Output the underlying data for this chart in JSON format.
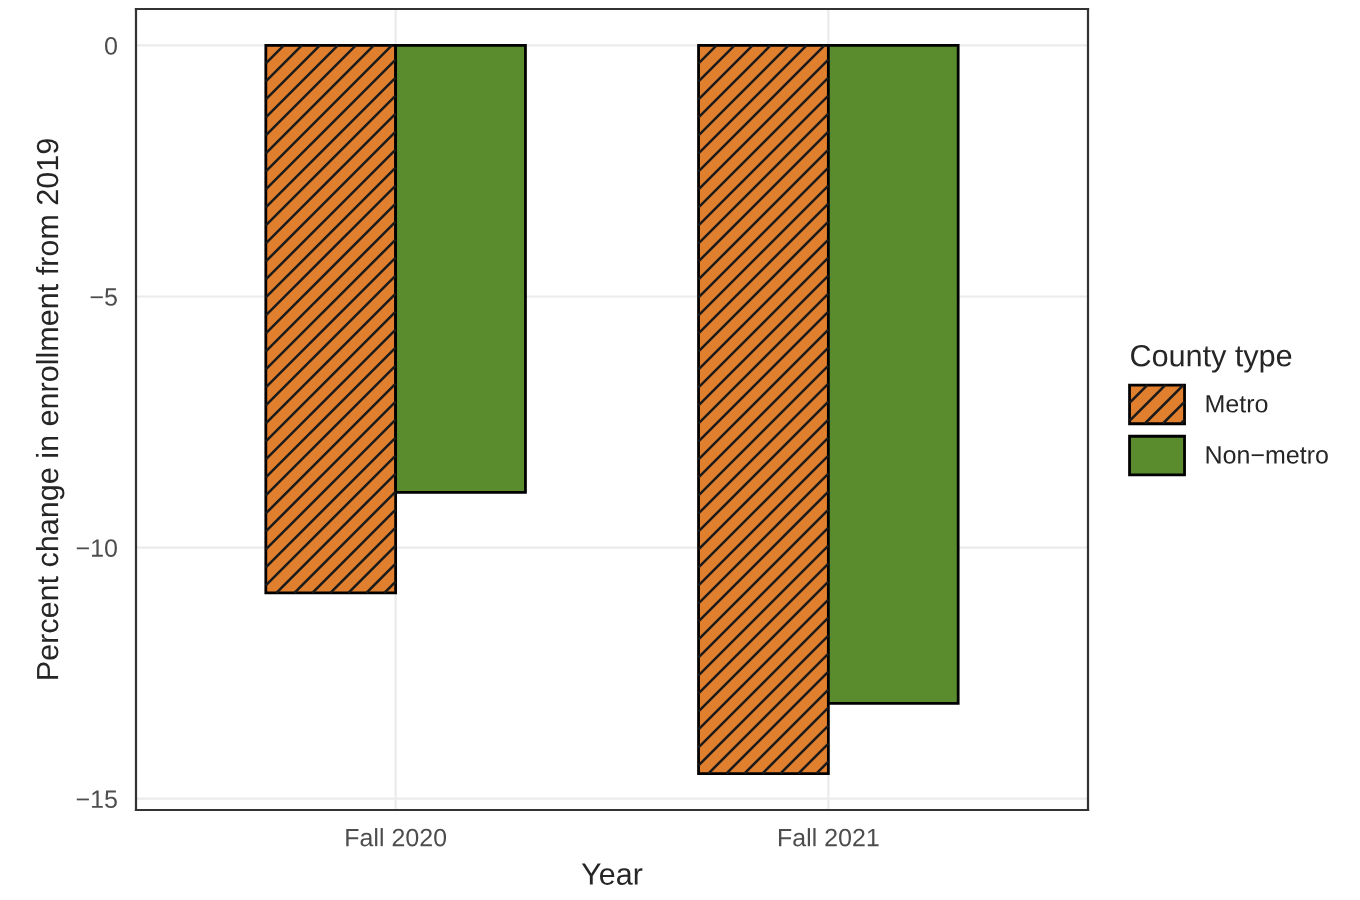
{
  "chart_data": {
    "type": "bar",
    "xlabel": "Year",
    "ylabel": "Percent change in enrollment from 2019",
    "legend_title": "County type",
    "categories": [
      "Fall 2020",
      "Fall 2021"
    ],
    "series": [
      {
        "name": "Metro",
        "color": "#e07f2e",
        "values": [
          -10.9,
          -14.5
        ]
      },
      {
        "name": "Non−metro",
        "color": "#5a8b2c",
        "values": [
          -8.9,
          -13.1
        ]
      }
    ],
    "ylim": [
      -15.225,
      0.725
    ],
    "yticks": [
      {
        "value": -15,
        "label": "−15"
      },
      {
        "value": -10,
        "label": "−10"
      },
      {
        "value": -5,
        "label": "−5"
      },
      0
    ],
    "grid": true,
    "legend": "right"
  }
}
